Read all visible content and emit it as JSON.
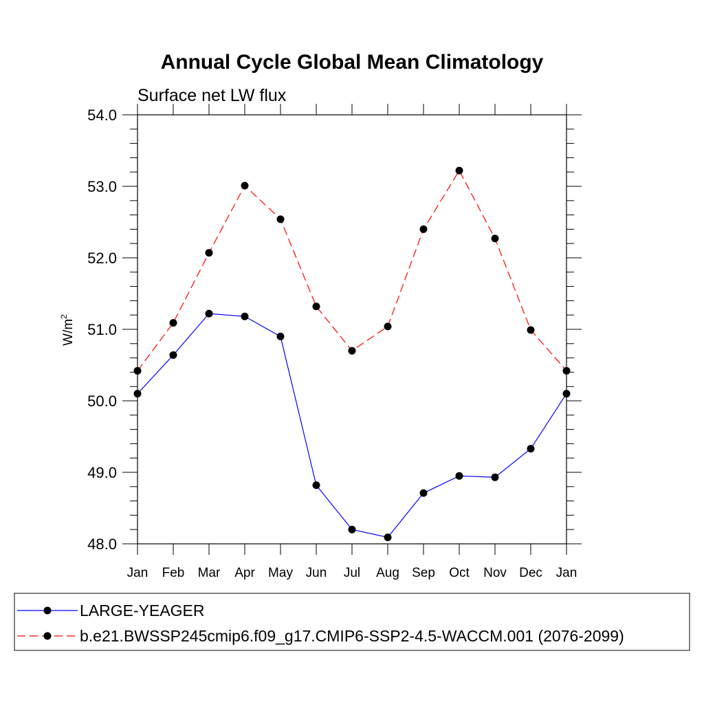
{
  "chart_data": {
    "type": "line",
    "title": "Annual Cycle Global Mean Climatology",
    "subtitle": "Surface net LW flux",
    "xlabel": "",
    "ylabel": "W/m",
    "ylabel_superscript": "2",
    "categories": [
      "Jan",
      "Feb",
      "Mar",
      "Apr",
      "May",
      "Jun",
      "Jul",
      "Aug",
      "Sep",
      "Oct",
      "Nov",
      "Dec",
      "Jan"
    ],
    "ylim": [
      48.0,
      54.0
    ],
    "yticks": [
      "48.0",
      "49.0",
      "50.0",
      "51.0",
      "52.0",
      "53.0",
      "54.0"
    ],
    "grid": false,
    "legend_position": "bottom",
    "series": [
      {
        "name": "LARGE-YEAGER",
        "color": "#0000ff",
        "dash": "solid",
        "marker": "filled-circle",
        "values": [
          50.1,
          50.64,
          51.22,
          51.18,
          50.9,
          48.82,
          48.2,
          48.09,
          48.71,
          48.95,
          48.93,
          49.33,
          50.1
        ]
      },
      {
        "name": "b.e21.BWSSP245cmip6.f09_g17.CMIP6-SSP2-4.5-WACCM.001 (2076-2099)",
        "color": "#ff0000",
        "dash": "dashed",
        "marker": "filled-circle",
        "values": [
          50.42,
          51.09,
          52.07,
          53.01,
          52.54,
          51.32,
          50.7,
          51.04,
          52.4,
          53.22,
          52.27,
          50.99,
          50.42
        ]
      }
    ]
  }
}
